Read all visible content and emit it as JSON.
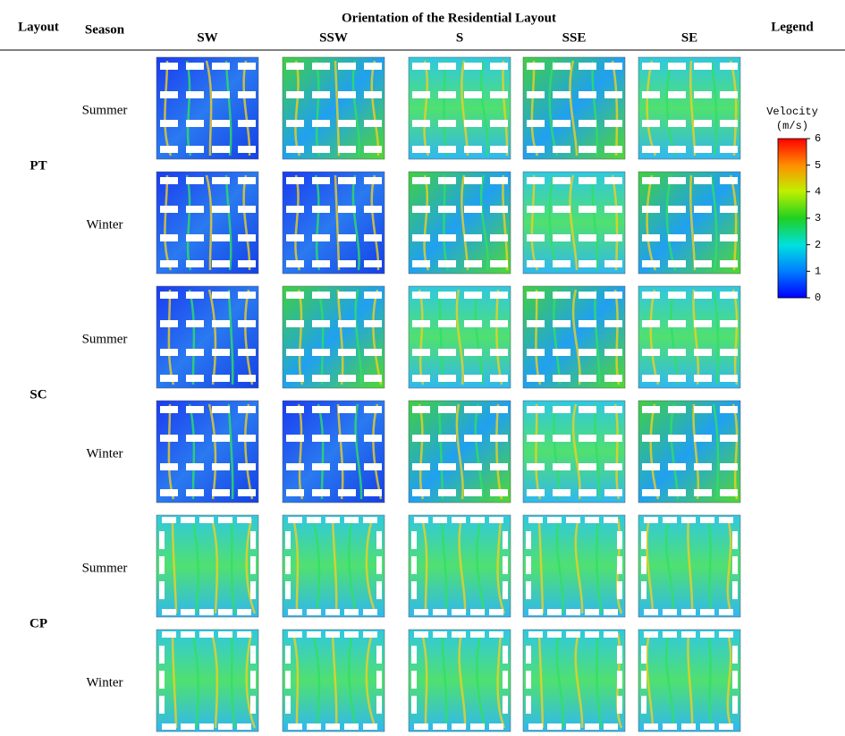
{
  "header": {
    "layout": "Layout",
    "season": "Season",
    "orientation": "Orientation of the Residential Layout",
    "directions": [
      "SW",
      "SSW",
      "S",
      "SSE",
      "SE"
    ],
    "legend": "Legend"
  },
  "rows": [
    {
      "layout": "PT",
      "seasons": [
        "Summer",
        "Winter"
      ]
    },
    {
      "layout": "SC",
      "seasons": [
        "Summer",
        "Winter"
      ]
    },
    {
      "layout": "CP",
      "seasons": [
        "Summer",
        "Winter"
      ]
    }
  ],
  "legend": {
    "title": "Velocity",
    "unit": "(m/s)",
    "ticks": [
      0,
      1,
      2,
      3,
      4,
      5,
      6
    ]
  }
}
